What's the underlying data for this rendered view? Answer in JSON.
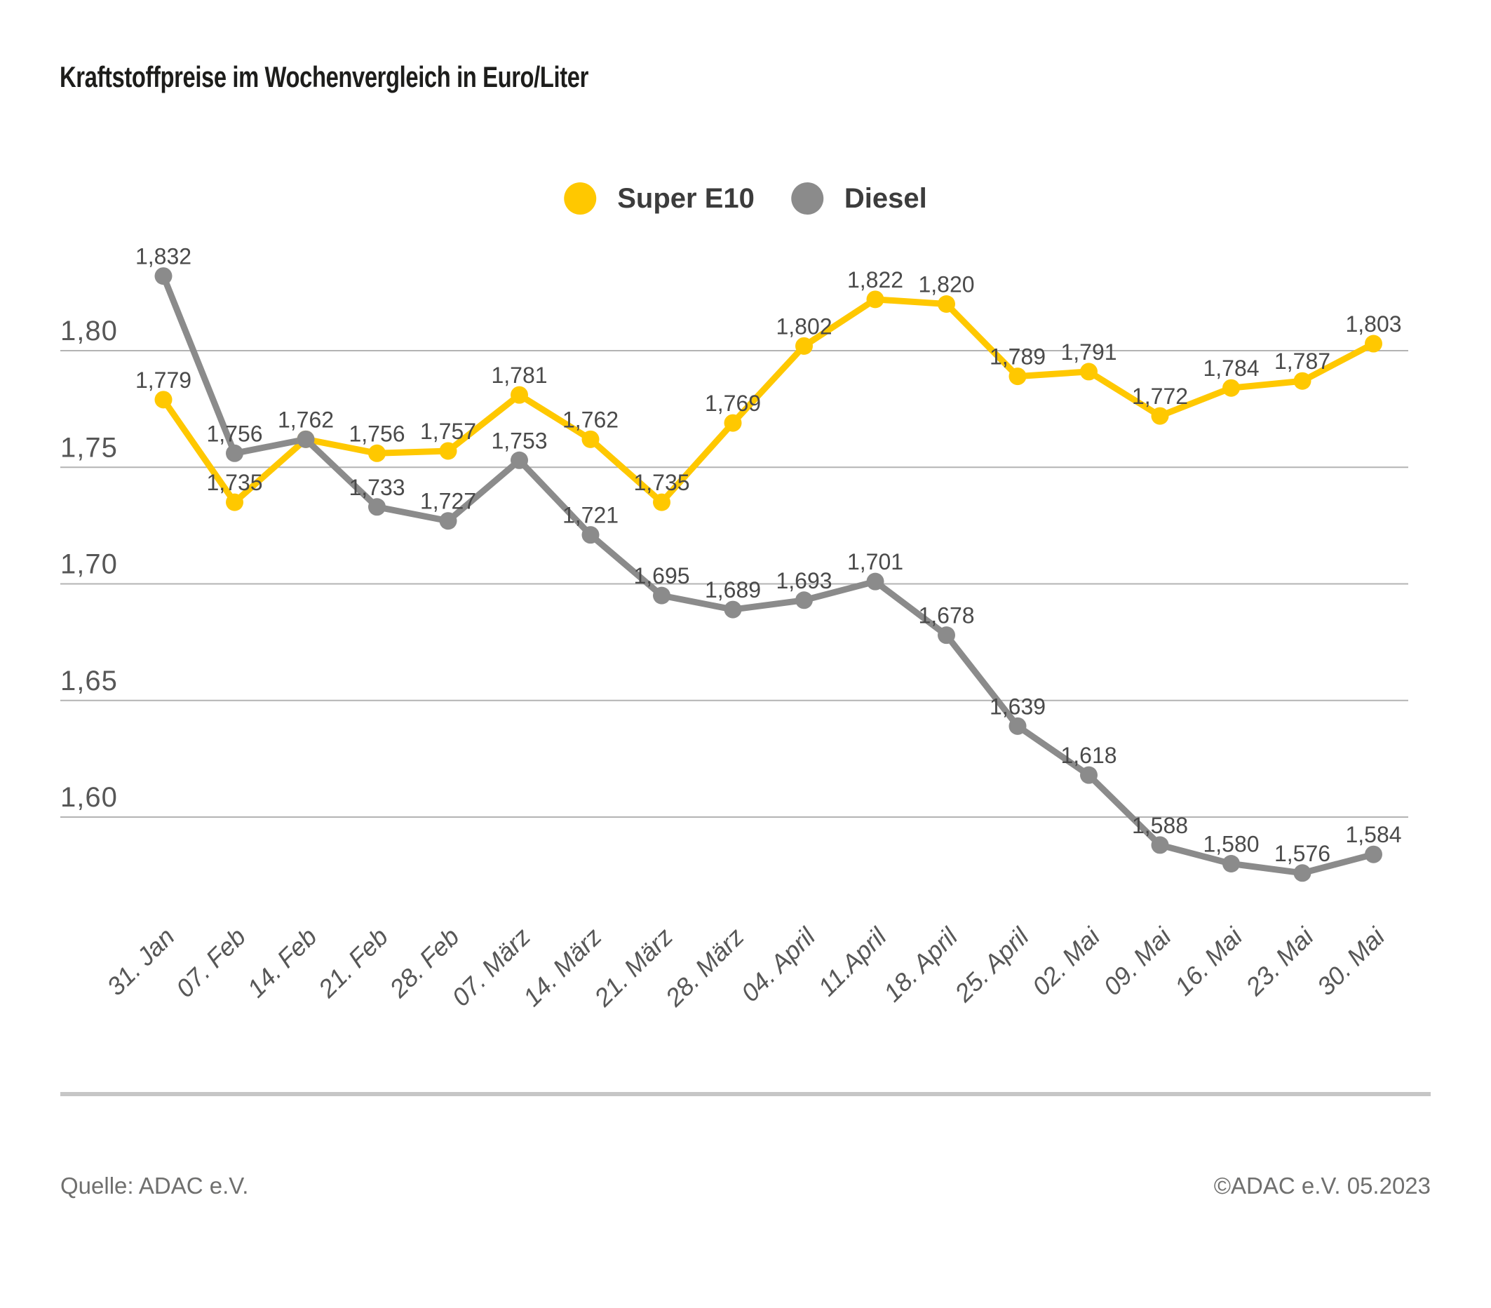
{
  "page": {
    "title": "Kraftstoffpreise im Wochenvergleich in Euro/Liter"
  },
  "legend": {
    "items": [
      {
        "label": "Super E10",
        "color": "#FFC800"
      },
      {
        "label": "Diesel",
        "color": "#8B8B8B"
      }
    ]
  },
  "chart_data": {
    "type": "line",
    "title": "Kraftstoffpreise im Wochenvergleich in Euro/Liter",
    "xlabel": "",
    "ylabel": "Euro/Liter",
    "grid": "horizontal",
    "legend_position": "top-center",
    "ylim": [
      1.56,
      1.85
    ],
    "y_ticks": [
      {
        "label": "1,80",
        "value": 1.8
      },
      {
        "label": "1,75",
        "value": 1.75
      },
      {
        "label": "1,70",
        "value": 1.7
      },
      {
        "label": "1,65",
        "value": 1.65
      },
      {
        "label": "1,60",
        "value": 1.6
      }
    ],
    "categories": [
      "31. Jan",
      "07. Feb",
      "14. Feb",
      "21. Feb",
      "28. Feb",
      "07. März",
      "14. März",
      "21. März",
      "28. März",
      "04. April",
      "11.April",
      "18. April",
      "25. April",
      "02. Mai",
      "09. Mai",
      "16. Mai",
      "23. Mai",
      "30. Mai"
    ],
    "series": [
      {
        "name": "Super E10",
        "color": "#FFC800",
        "values": [
          1.779,
          1.735,
          1.762,
          1.756,
          1.757,
          1.781,
          1.762,
          1.735,
          1.769,
          1.802,
          1.822,
          1.82,
          1.789,
          1.791,
          1.772,
          1.784,
          1.787,
          1.803
        ],
        "labels": [
          "1,779",
          "1,735",
          "1,762",
          "1,756",
          "1,757",
          "1,781",
          "1,762",
          "1,735",
          "1,769",
          "1,802",
          "1,822",
          "1,820",
          "1,789",
          "1,791",
          "1,772",
          "1,784",
          "1,787",
          "1,803"
        ]
      },
      {
        "name": "Diesel",
        "color": "#8B8B8B",
        "values": [
          1.832,
          1.756,
          1.762,
          1.733,
          1.727,
          1.753,
          1.721,
          1.695,
          1.689,
          1.693,
          1.701,
          1.678,
          1.639,
          1.618,
          1.588,
          1.58,
          1.576,
          1.584
        ],
        "labels": [
          "1,832",
          "1,756",
          "1,762",
          "1,733",
          "1,727",
          "1,753",
          "1,721",
          "1,695",
          "1,689",
          "1,693",
          "1,701",
          "1,678",
          "1,639",
          "1,618",
          "1,588",
          "1,580",
          "1,576",
          "1,584"
        ]
      }
    ]
  },
  "footer": {
    "source": "Quelle: ADAC e.V.",
    "copyright": "©ADAC e.V. 05.2023"
  }
}
